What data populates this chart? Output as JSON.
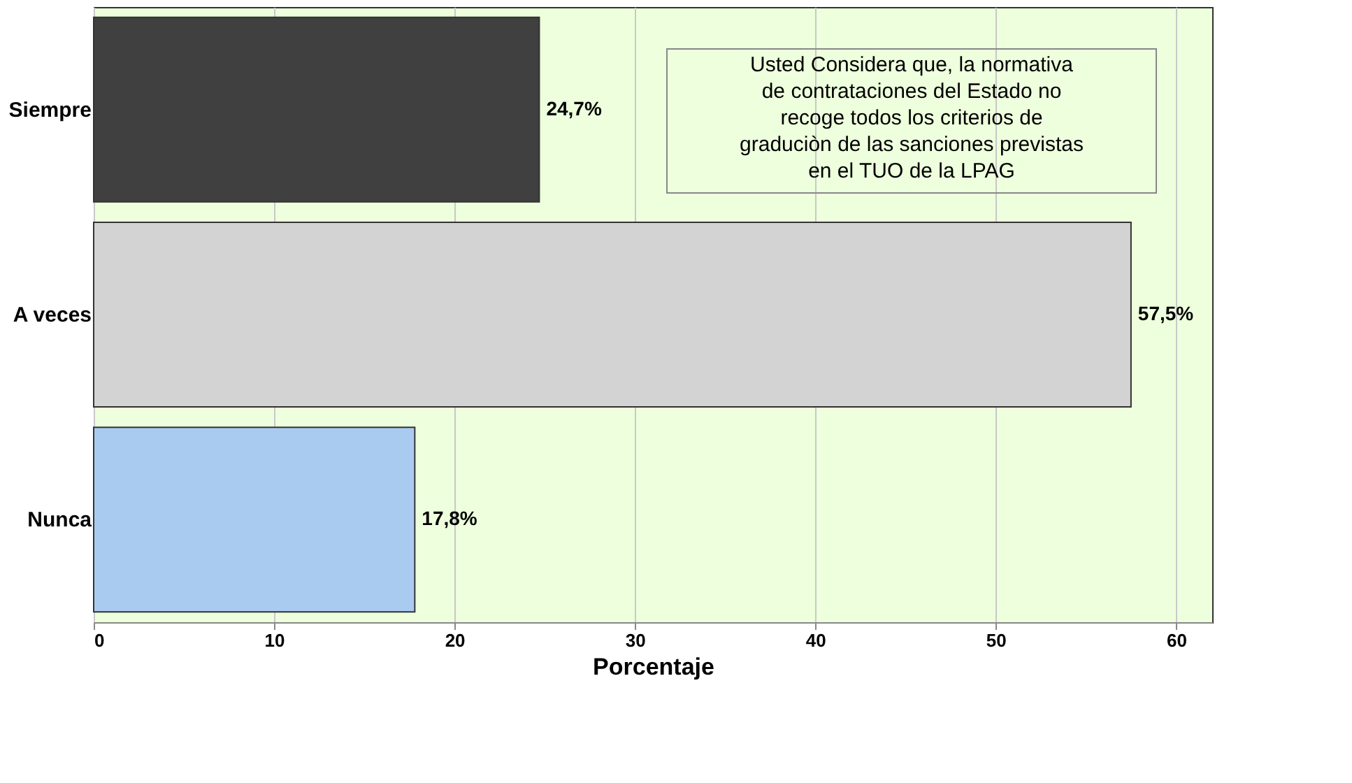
{
  "chart_data": {
    "type": "bar",
    "orientation": "horizontal",
    "xlabel": "Porcentaje",
    "categories": [
      "Siempre",
      "A veces",
      "Nunca"
    ],
    "values": [
      24.7,
      57.5,
      17.8
    ],
    "colors": [
      "#404040",
      "#d3d3d3",
      "#aacbf0"
    ],
    "value_labels": [
      "24,7%",
      "57,5%",
      "17,8%"
    ],
    "xlim": [
      0,
      62
    ],
    "xticks": [
      0,
      10,
      20,
      30,
      40,
      50,
      60
    ],
    "grid": "x",
    "annotations": [
      "Usted Considera  que, la normativa de contrataciones del Estado no recoge todos los criterios de graduciòn de las sanciones previstas en el TUO de la LPAG"
    ]
  }
}
